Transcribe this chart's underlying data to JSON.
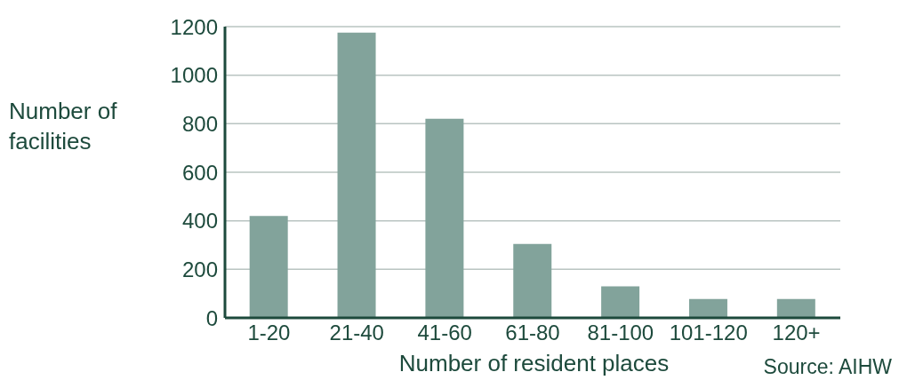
{
  "chart_data": {
    "type": "bar",
    "xlabel": "Number of resident places",
    "ylabel": "Number of facilities",
    "annotations": [
      "Source: AIHW"
    ],
    "categories": [
      "1-20",
      "21-40",
      "41-60",
      "61-80",
      "81-100",
      "101-120",
      "120+"
    ],
    "values": [
      420,
      1175,
      820,
      305,
      130,
      78,
      78
    ],
    "color": "#82a39b",
    "ylim": [
      0,
      1200
    ],
    "yticks": [
      0,
      200,
      400,
      600,
      800,
      1000,
      1200
    ],
    "grid": "y"
  }
}
